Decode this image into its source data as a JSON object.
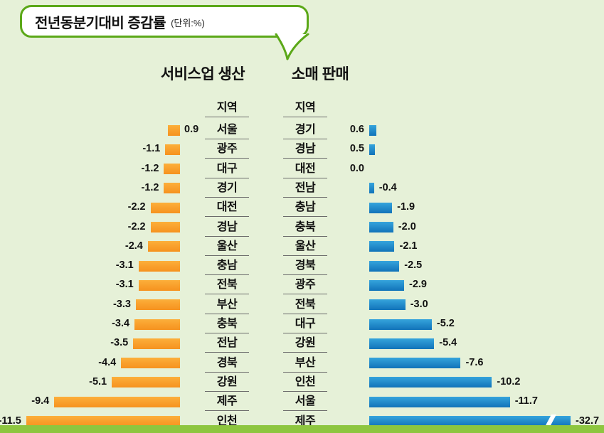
{
  "title": {
    "text": "전년동분기대비 증감률",
    "unit": "(단위:%)"
  },
  "colors": {
    "background": "#E6F1D8",
    "footer_bar": "#8DC63F",
    "bubble_border": "#5BA818",
    "service_bar_top": "#FCAF3B",
    "service_bar_bottom": "#F6921E",
    "retail_bar_top": "#35A4DC",
    "retail_bar_bottom": "#1173B9"
  },
  "chart_data": {
    "type": "bar",
    "layout": "mirrored-horizontal",
    "unit": "%",
    "title": "전년동분기대비 증감률 (단위:%)",
    "charts": [
      {
        "title": "서비스업 생산",
        "column_header": "지역",
        "bars_direction": "left",
        "categories": [
          "서울",
          "광주",
          "대구",
          "경기",
          "대전",
          "경남",
          "울산",
          "충남",
          "전북",
          "부산",
          "충북",
          "전남",
          "경북",
          "강원",
          "제주",
          "인천"
        ],
        "values": [
          0.9,
          -1.1,
          -1.2,
          -1.2,
          -2.2,
          -2.2,
          -2.4,
          -3.1,
          -3.1,
          -3.3,
          -3.4,
          -3.5,
          -4.4,
          -5.1,
          -9.4,
          -11.5
        ]
      },
      {
        "title": "소매 판매",
        "column_header": "지역",
        "bars_direction": "right",
        "categories": [
          "경기",
          "경남",
          "대전",
          "전남",
          "충남",
          "충북",
          "울산",
          "경북",
          "광주",
          "전북",
          "대구",
          "강원",
          "부산",
          "인천",
          "서울",
          "제주"
        ],
        "values": [
          0.6,
          0.5,
          0.0,
          -0.4,
          -1.9,
          -2.0,
          -2.1,
          -2.5,
          -2.9,
          -3.0,
          -5.2,
          -5.4,
          -7.6,
          -10.2,
          -11.7,
          -32.7
        ],
        "axis_break_category": "제주"
      }
    ]
  }
}
